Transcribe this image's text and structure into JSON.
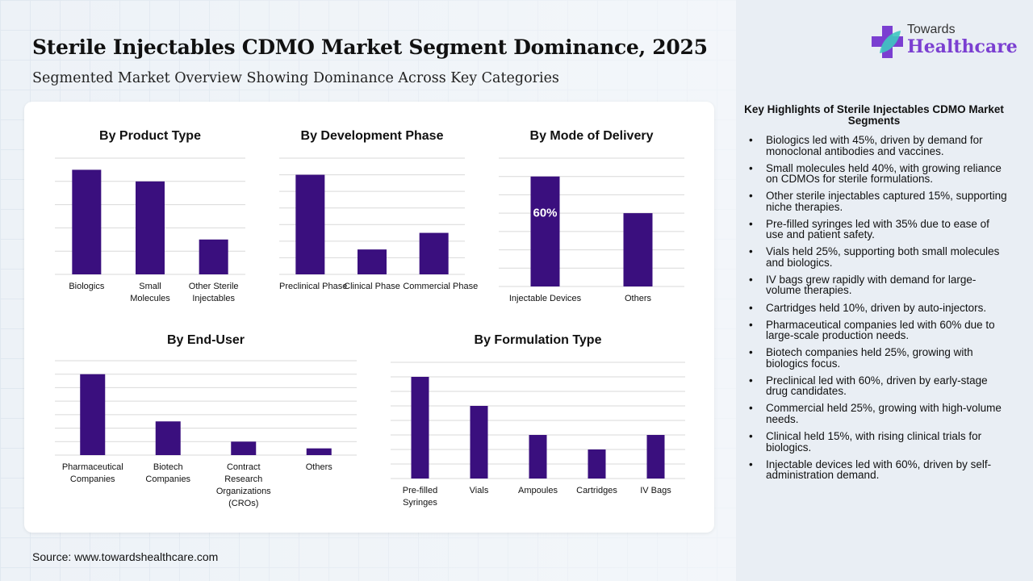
{
  "header": {
    "title": "Sterile Injectables CDMO Market Segment Dominance, 2025",
    "subtitle": "Segmented Market Overview Showing Dominance Across Key Categories"
  },
  "logo": {
    "line1": "Towards",
    "line2": "Healthcare"
  },
  "source": "Source: www.towardshealthcare.com",
  "colors": {
    "bar": "#3a0f7e",
    "grid": "#d9d9d9",
    "brand": "#7b3fd1"
  },
  "chart_data": [
    {
      "type": "bar",
      "title": "By Product Type",
      "categories": [
        "Biologics",
        "Small Molecules",
        "Other Sterile Injectables"
      ],
      "values": [
        45,
        40,
        15
      ],
      "ylim": [
        0,
        50
      ],
      "grid_step": 10,
      "data_labels": [
        null,
        null,
        null
      ]
    },
    {
      "type": "bar",
      "title": "By Development Phase",
      "categories": [
        "Preclinical Phase",
        "Clinical Phase",
        "Commercial Phase"
      ],
      "values": [
        60,
        15,
        25
      ],
      "ylim": [
        0,
        70
      ],
      "grid_step": 10,
      "data_labels": [
        null,
        null,
        null
      ]
    },
    {
      "type": "bar",
      "title": "By Mode of Delivery",
      "categories": [
        "Injectable Devices",
        "Others"
      ],
      "values": [
        60,
        40
      ],
      "ylim": [
        0,
        70
      ],
      "grid_step": 10,
      "data_labels": [
        "60%",
        null
      ]
    },
    {
      "type": "bar",
      "title": "By End-User",
      "categories": [
        "Pharmaceutical Companies",
        "Biotech Companies",
        "Contract Research Organizations (CROs)",
        "Others"
      ],
      "values": [
        60,
        25,
        10,
        5
      ],
      "ylim": [
        0,
        70
      ],
      "grid_step": 10,
      "data_labels": [
        null,
        null,
        null,
        null
      ]
    },
    {
      "type": "bar",
      "title": "By Formulation Type",
      "categories": [
        "Pre-filled Syringes",
        "Vials",
        "Ampoules",
        "Cartridges",
        "IV Bags"
      ],
      "values": [
        35,
        25,
        15,
        10,
        15
      ],
      "ylim": [
        0,
        40
      ],
      "grid_step": 5,
      "data_labels": [
        null,
        null,
        null,
        null,
        null
      ]
    }
  ],
  "highlights": {
    "title": "Key Highlights of Sterile Injectables CDMO Market Segments",
    "items": [
      "Biologics led with 45%, driven by demand for monoclonal antibodies and vaccines.",
      "Small molecules held 40%, with growing reliance on CDMOs for sterile formulations.",
      "Other sterile injectables captured 15%, supporting niche therapies.",
      "Pre-filled syringes led with 35% due to ease of use and patient safety.",
      "Vials held 25%, supporting both small molecules and biologics.",
      "IV bags grew rapidly with demand for large-volume therapies.",
      "Cartridges held 10%, driven by auto-injectors.",
      "Pharmaceutical companies led with 60% due to large-scale production needs.",
      "Biotech companies held 25%, growing with biologics focus.",
      "Preclinical led with 60%, driven by early-stage drug candidates.",
      "Commercial held 25%, growing with high-volume needs.",
      "Clinical held 15%, with rising clinical trials for biologics.",
      "Injectable devices led with 60%, driven by self-administration demand."
    ]
  }
}
